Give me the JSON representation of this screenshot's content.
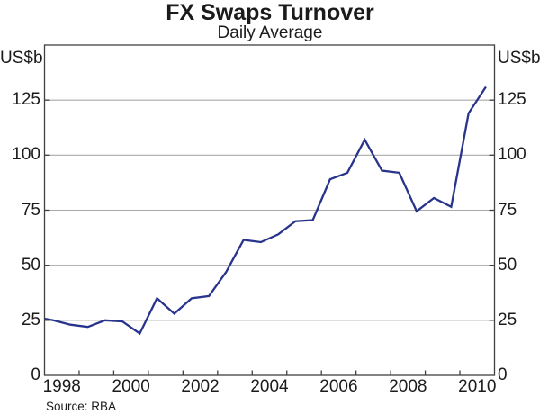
{
  "header": {
    "title": "FX Swaps Turnover",
    "subtitle": "Daily Average"
  },
  "axes": {
    "unit_left": "US$b",
    "unit_right": "US$b"
  },
  "footer": {
    "source": "Source: RBA"
  },
  "chart_data": {
    "type": "line",
    "title": "FX Swaps Turnover",
    "subtitle": "Daily Average",
    "ylabel": "US$b",
    "grid": "horizontal",
    "legend": "none",
    "colors": {
      "line": "#28348b",
      "grid": "#a9a9a9",
      "axis": "#404040",
      "text": "#1b1b1b"
    },
    "y_axis": {
      "range": [
        0,
        150
      ],
      "ticks": [
        0,
        25,
        50,
        75,
        100,
        125
      ],
      "gridlines": [
        25,
        50,
        75,
        100,
        125
      ]
    },
    "x_axis": {
      "range": [
        1998,
        2011
      ],
      "tick_years": [
        1999,
        2000,
        2001,
        2002,
        2003,
        2004,
        2005,
        2006,
        2007,
        2008,
        2009,
        2010
      ],
      "labeled_years": [
        1998,
        2000,
        2002,
        2004,
        2006,
        2008,
        2010
      ]
    },
    "series": [
      {
        "name": "FX swaps turnover, daily average (US$b)",
        "x": [
          1997.75,
          1998.25,
          1998.75,
          1999.25,
          1999.75,
          2000.25,
          2000.75,
          2001.25,
          2001.75,
          2002.25,
          2002.75,
          2003.25,
          2003.75,
          2004.25,
          2004.75,
          2005.25,
          2005.75,
          2006.25,
          2006.75,
          2007.25,
          2007.75,
          2008.25,
          2008.75,
          2009.25,
          2009.75,
          2010.25,
          2010.75
        ],
        "values": [
          26.5,
          25,
          23,
          22,
          25,
          24.5,
          19,
          35,
          28,
          35,
          36,
          47,
          61.5,
          60.5,
          64,
          70,
          70.5,
          89,
          92,
          107,
          93,
          92,
          74.5,
          80.5,
          76.5,
          119,
          131
        ]
      }
    ],
    "source": "Source: RBA"
  }
}
